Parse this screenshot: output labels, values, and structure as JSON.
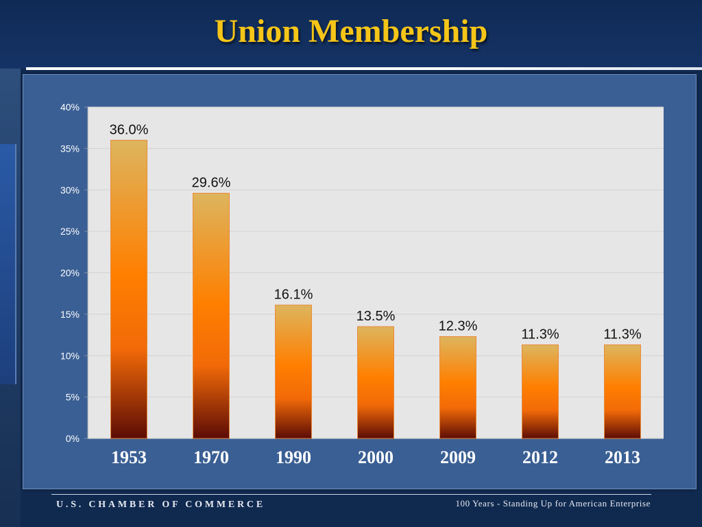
{
  "slide": {
    "title": "Union Membership",
    "footer_left": "U.S. CHAMBER OF COMMERCE",
    "footer_right": "100 Years - Standing Up for American Enterprise"
  },
  "colors": {
    "title": "#f5c518",
    "bar_top": "#ddb55e",
    "bar_mid": "#ff7f00",
    "bar_bottom": "#5c0c05",
    "plot_bg": "#e6e6e6"
  },
  "chart_data": {
    "type": "bar",
    "title": "",
    "xlabel": "",
    "ylabel": "",
    "categories": [
      "1953",
      "1970",
      "1990",
      "2000",
      "2009",
      "2012",
      "2013"
    ],
    "values": [
      36.0,
      29.6,
      16.1,
      13.5,
      12.3,
      11.3,
      11.3
    ],
    "value_labels": [
      "36.0%",
      "29.6%",
      "16.1%",
      "13.5%",
      "12.3%",
      "11.3%",
      "11.3%"
    ],
    "ylim": [
      0,
      40
    ],
    "yticks": [
      0,
      5,
      10,
      15,
      20,
      25,
      30,
      35,
      40
    ],
    "ytick_labels": [
      "0%",
      "5%",
      "10%",
      "15%",
      "20%",
      "25%",
      "30%",
      "35%",
      "40%"
    ],
    "grid": true,
    "legend": "none"
  }
}
